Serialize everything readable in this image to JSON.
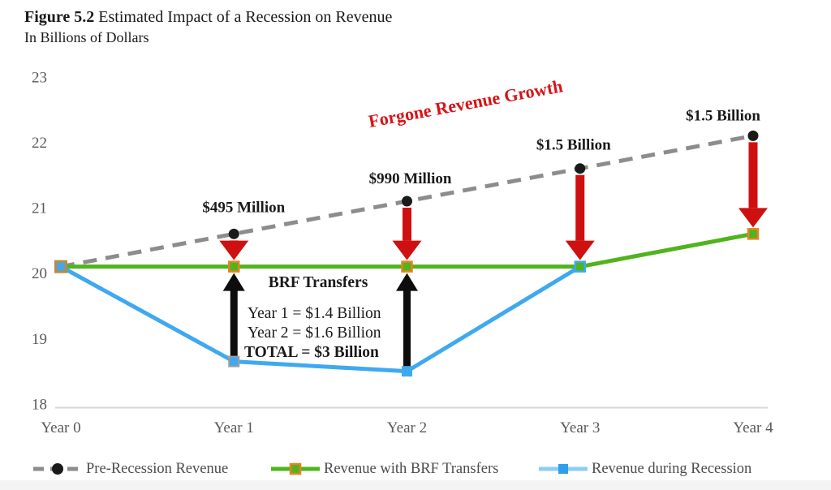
{
  "header": {
    "figure_label": "Figure 5.2",
    "title": " Estimated Impact of a Recession on Revenue",
    "subtitle": "In Billions of Dollars"
  },
  "colors": {
    "pre_recession_line": "#8c8c8c",
    "pre_recession_dot": "#1a1a1a",
    "brf_line": "#4fb41e",
    "brf_marker_border": "#e8821e",
    "recession_line": "#3fa9f0",
    "recession_marker_border_y1": "#9e9e9e",
    "year0_marker_border": "#bf8a3d",
    "year3_marker_border": "#3fa9f0",
    "red_arrow": "#ce1010",
    "forgone_text": "#d61518",
    "black_arrow": "#0d0d0d",
    "axis_line": "#d9d9d9",
    "tick_text": "#595959",
    "annotation_text": "#1a1a1a"
  },
  "chart_data": {
    "type": "line",
    "title": "Figure 5.2 Estimated Impact of a Recession on Revenue",
    "subtitle": "In Billions of Dollars",
    "x_categories": [
      "Year 0",
      "Year 1",
      "Year 2",
      "Year 3",
      "Year 4"
    ],
    "y_ticks": [
      23,
      22,
      21,
      20,
      19,
      18
    ],
    "ylim": [
      18,
      23
    ],
    "grid": "off",
    "legend_position": "bottom",
    "series": [
      {
        "name": "Pre-Recession Revenue",
        "style": "dashed-gray-black-dots",
        "values": [
          20.1,
          20.6,
          21.1,
          21.6,
          22.1
        ]
      },
      {
        "name": "Revenue with BRF Transfers",
        "style": "green-solid-square-markers",
        "values": [
          20.1,
          20.1,
          20.1,
          20.1,
          20.6
        ]
      },
      {
        "name": "Revenue during Recession",
        "style": "blue-solid-square-markers",
        "values": [
          20.1,
          18.65,
          18.5,
          20.1,
          null
        ]
      }
    ],
    "red_arrows": [
      {
        "year": 1,
        "from": 20.6,
        "to": 20.1,
        "label": "$495 Million",
        "label_dx": 12,
        "label_dy": -27
      },
      {
        "year": 2,
        "from": 21.1,
        "to": 20.1,
        "label": "$990 Million",
        "label_dx": 4,
        "label_dy": -22
      },
      {
        "year": 3,
        "from": 21.6,
        "to": 20.1,
        "label": "$1.5 Billion",
        "label_dx": -8,
        "label_dy": -23
      },
      {
        "year": 4,
        "from": 22.1,
        "to": 20.6,
        "label": "$1.5 Billion",
        "label_dx": -37,
        "label_dy": -19
      }
    ],
    "black_arrows": [
      {
        "year": 1,
        "from": 18.65,
        "to": 20.1
      },
      {
        "year": 2,
        "from": 18.5,
        "to": 20.1
      }
    ],
    "brf_note": {
      "title": "BRF Transfers",
      "lines": [
        "Year 1 = $1.4 Billion",
        "Year 2 = $1.6 Billion"
      ],
      "total": "TOTAL = $3 Billion"
    },
    "forgone_label": {
      "text": "Forgone Revenue Growth",
      "rotate_deg": -10.5
    }
  },
  "legend": {
    "items": [
      {
        "label": "Pre-Recession Revenue"
      },
      {
        "label": "Revenue with BRF Transfers"
      },
      {
        "label": "Revenue during Recession"
      }
    ]
  }
}
